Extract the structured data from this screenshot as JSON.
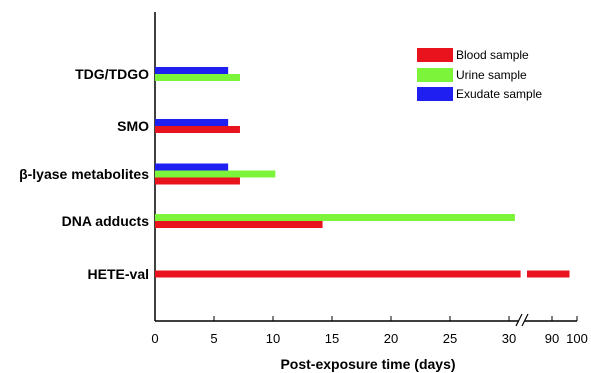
{
  "chart_data": {
    "type": "bar",
    "orientation": "horizontal",
    "title": "",
    "xlabel": "Post-exposure time (days)",
    "ylabel": "",
    "x_axis": {
      "segments": [
        {
          "range": [
            0,
            32
          ],
          "ticks": [
            0,
            5,
            10,
            15,
            20,
            25,
            30
          ]
        },
        {
          "range": [
            80,
            100
          ],
          "ticks": [
            90,
            100
          ]
        }
      ],
      "break_between": [
        32,
        80
      ]
    },
    "categories": [
      "TDG/TDGO",
      "SMO",
      "β-lyase metabolites",
      "DNA adducts",
      "HETE-val"
    ],
    "series": [
      {
        "name": "Blood sample",
        "color": "#e8131c",
        "values": [
          null,
          7.2,
          7.2,
          14.2,
          97
        ]
      },
      {
        "name": "Urine sample",
        "color": "#7cf43a",
        "values": [
          7.2,
          null,
          10.2,
          30.5,
          null
        ]
      },
      {
        "name": "Exudate sample",
        "color": "#1f1ff2",
        "values": [
          6.2,
          6.2,
          6.2,
          null,
          null
        ]
      }
    ],
    "legend_position": "top-right",
    "grid": false
  }
}
